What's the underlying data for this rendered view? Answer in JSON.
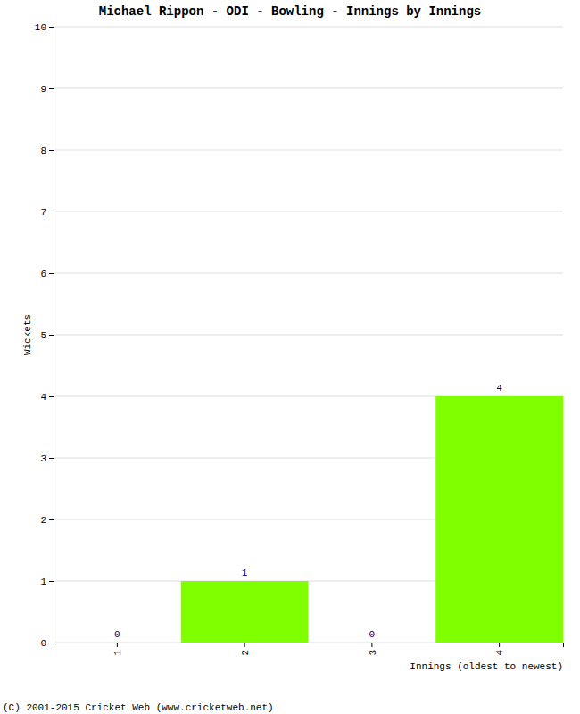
{
  "chart_data": {
    "type": "bar",
    "title": "Michael Rippon - ODI - Bowling - Innings by Innings",
    "x_label": "Innings (oldest to newest)",
    "y_label": "Wickets",
    "annotations": [
      "(C) 2001-2015 Cricket Web (www.cricketweb.net)"
    ],
    "categories": [
      "1",
      "2",
      "3",
      "4"
    ],
    "values": [
      0,
      1,
      0,
      4
    ],
    "color": "#80ff00",
    "ylim": [
      0,
      10
    ],
    "yticks": [
      0,
      1,
      2,
      3,
      4,
      5,
      6,
      7,
      8,
      9,
      10
    ],
    "grid": true,
    "data_labels": true
  }
}
